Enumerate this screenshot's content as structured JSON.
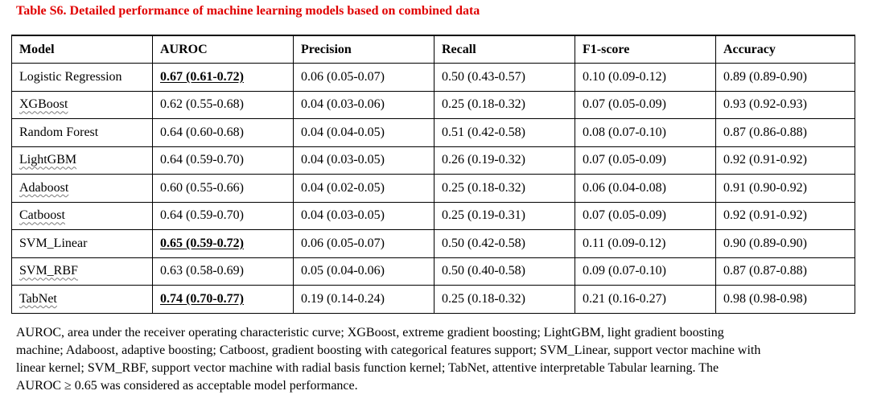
{
  "title": "Table S6. Detailed performance of machine learning models based on combined data",
  "colors": {
    "title": "#e00000",
    "text": "#000000",
    "border": "#000000"
  },
  "table": {
    "headers": [
      "Model",
      "AUROC",
      "Precision",
      "Recall",
      "F1-score",
      "Accuracy"
    ],
    "rows": [
      {
        "model": "Logistic Regression",
        "auroc": "0.67 (0.61-0.72)",
        "auroc_highlight": true,
        "precision": "0.06 (0.05-0.07)",
        "recall": "0.50 (0.43-0.57)",
        "f1": "0.10 (0.09-0.12)",
        "accuracy": "0.89 (0.89-0.90)"
      },
      {
        "model": "XGBoost",
        "auroc": "0.62 (0.55-0.68)",
        "auroc_highlight": false,
        "precision": "0.04 (0.03-0.06)",
        "recall": "0.25 (0.18-0.32)",
        "f1": "0.07 (0.05-0.09)",
        "accuracy": "0.93 (0.92-0.93)"
      },
      {
        "model": "Random Forest",
        "auroc": "0.64 (0.60-0.68)",
        "auroc_highlight": false,
        "precision": "0.04 (0.04-0.05)",
        "recall": "0.51 (0.42-0.58)",
        "f1": "0.08 (0.07-0.10)",
        "accuracy": "0.87 (0.86-0.88)"
      },
      {
        "model": "LightGBM",
        "auroc": "0.64 (0.59-0.70)",
        "auroc_highlight": false,
        "precision": "0.04 (0.03-0.05)",
        "recall": "0.26 (0.19-0.32)",
        "f1": "0.07 (0.05-0.09)",
        "accuracy": "0.92 (0.91-0.92)"
      },
      {
        "model": "Adaboost",
        "auroc": "0.60 (0.55-0.66)",
        "auroc_highlight": false,
        "precision": "0.04 (0.02-0.05)",
        "recall": "0.25 (0.18-0.32)",
        "f1": "0.06 (0.04-0.08)",
        "accuracy": "0.91 (0.90-0.92)"
      },
      {
        "model": "Catboost",
        "auroc": "0.64 (0.59-0.70)",
        "auroc_highlight": false,
        "precision": "0.04 (0.03-0.05)",
        "recall": "0.25 (0.19-0.31)",
        "f1": "0.07 (0.05-0.09)",
        "accuracy": "0.92 (0.91-0.92)"
      },
      {
        "model": "SVM_Linear",
        "auroc": "0.65 (0.59-0.72)",
        "auroc_highlight": true,
        "precision": "0.06 (0.05-0.07)",
        "recall": "0.50 (0.42-0.58)",
        "f1": "0.11 (0.09-0.12)",
        "accuracy": "0.90 (0.89-0.90)"
      },
      {
        "model": "SVM_RBF",
        "auroc": "0.63 (0.58-0.69)",
        "auroc_highlight": false,
        "precision": "0.05 (0.04-0.06)",
        "recall": "0.50 (0.40-0.58)",
        "f1": "0.09 (0.07-0.10)",
        "accuracy": "0.87 (0.87-0.88)"
      },
      {
        "model": "TabNet",
        "auroc": "0.74 (0.70-0.77)",
        "auroc_highlight": true,
        "precision": "0.19 (0.14-0.24)",
        "recall": "0.25 (0.18-0.32)",
        "f1": "0.21 (0.16-0.27)",
        "accuracy": "0.98 (0.98-0.98)"
      }
    ]
  },
  "footnote": {
    "lines": [
      "AUROC, area under the receiver operating characteristic curve; XGBoost, extreme gradient boosting; LightGBM, light gradient boosting",
      "machine; Adaboost, adaptive boosting; Catboost, gradient boosting with categorical features support; SVM_Linear, support vector machine with",
      "linear kernel; SVM_RBF, support vector machine with radial basis function kernel; TabNet, attentive interpretable Tabular learning. The",
      "AUROC ≥ 0.65 was considered as acceptable model performance."
    ]
  }
}
